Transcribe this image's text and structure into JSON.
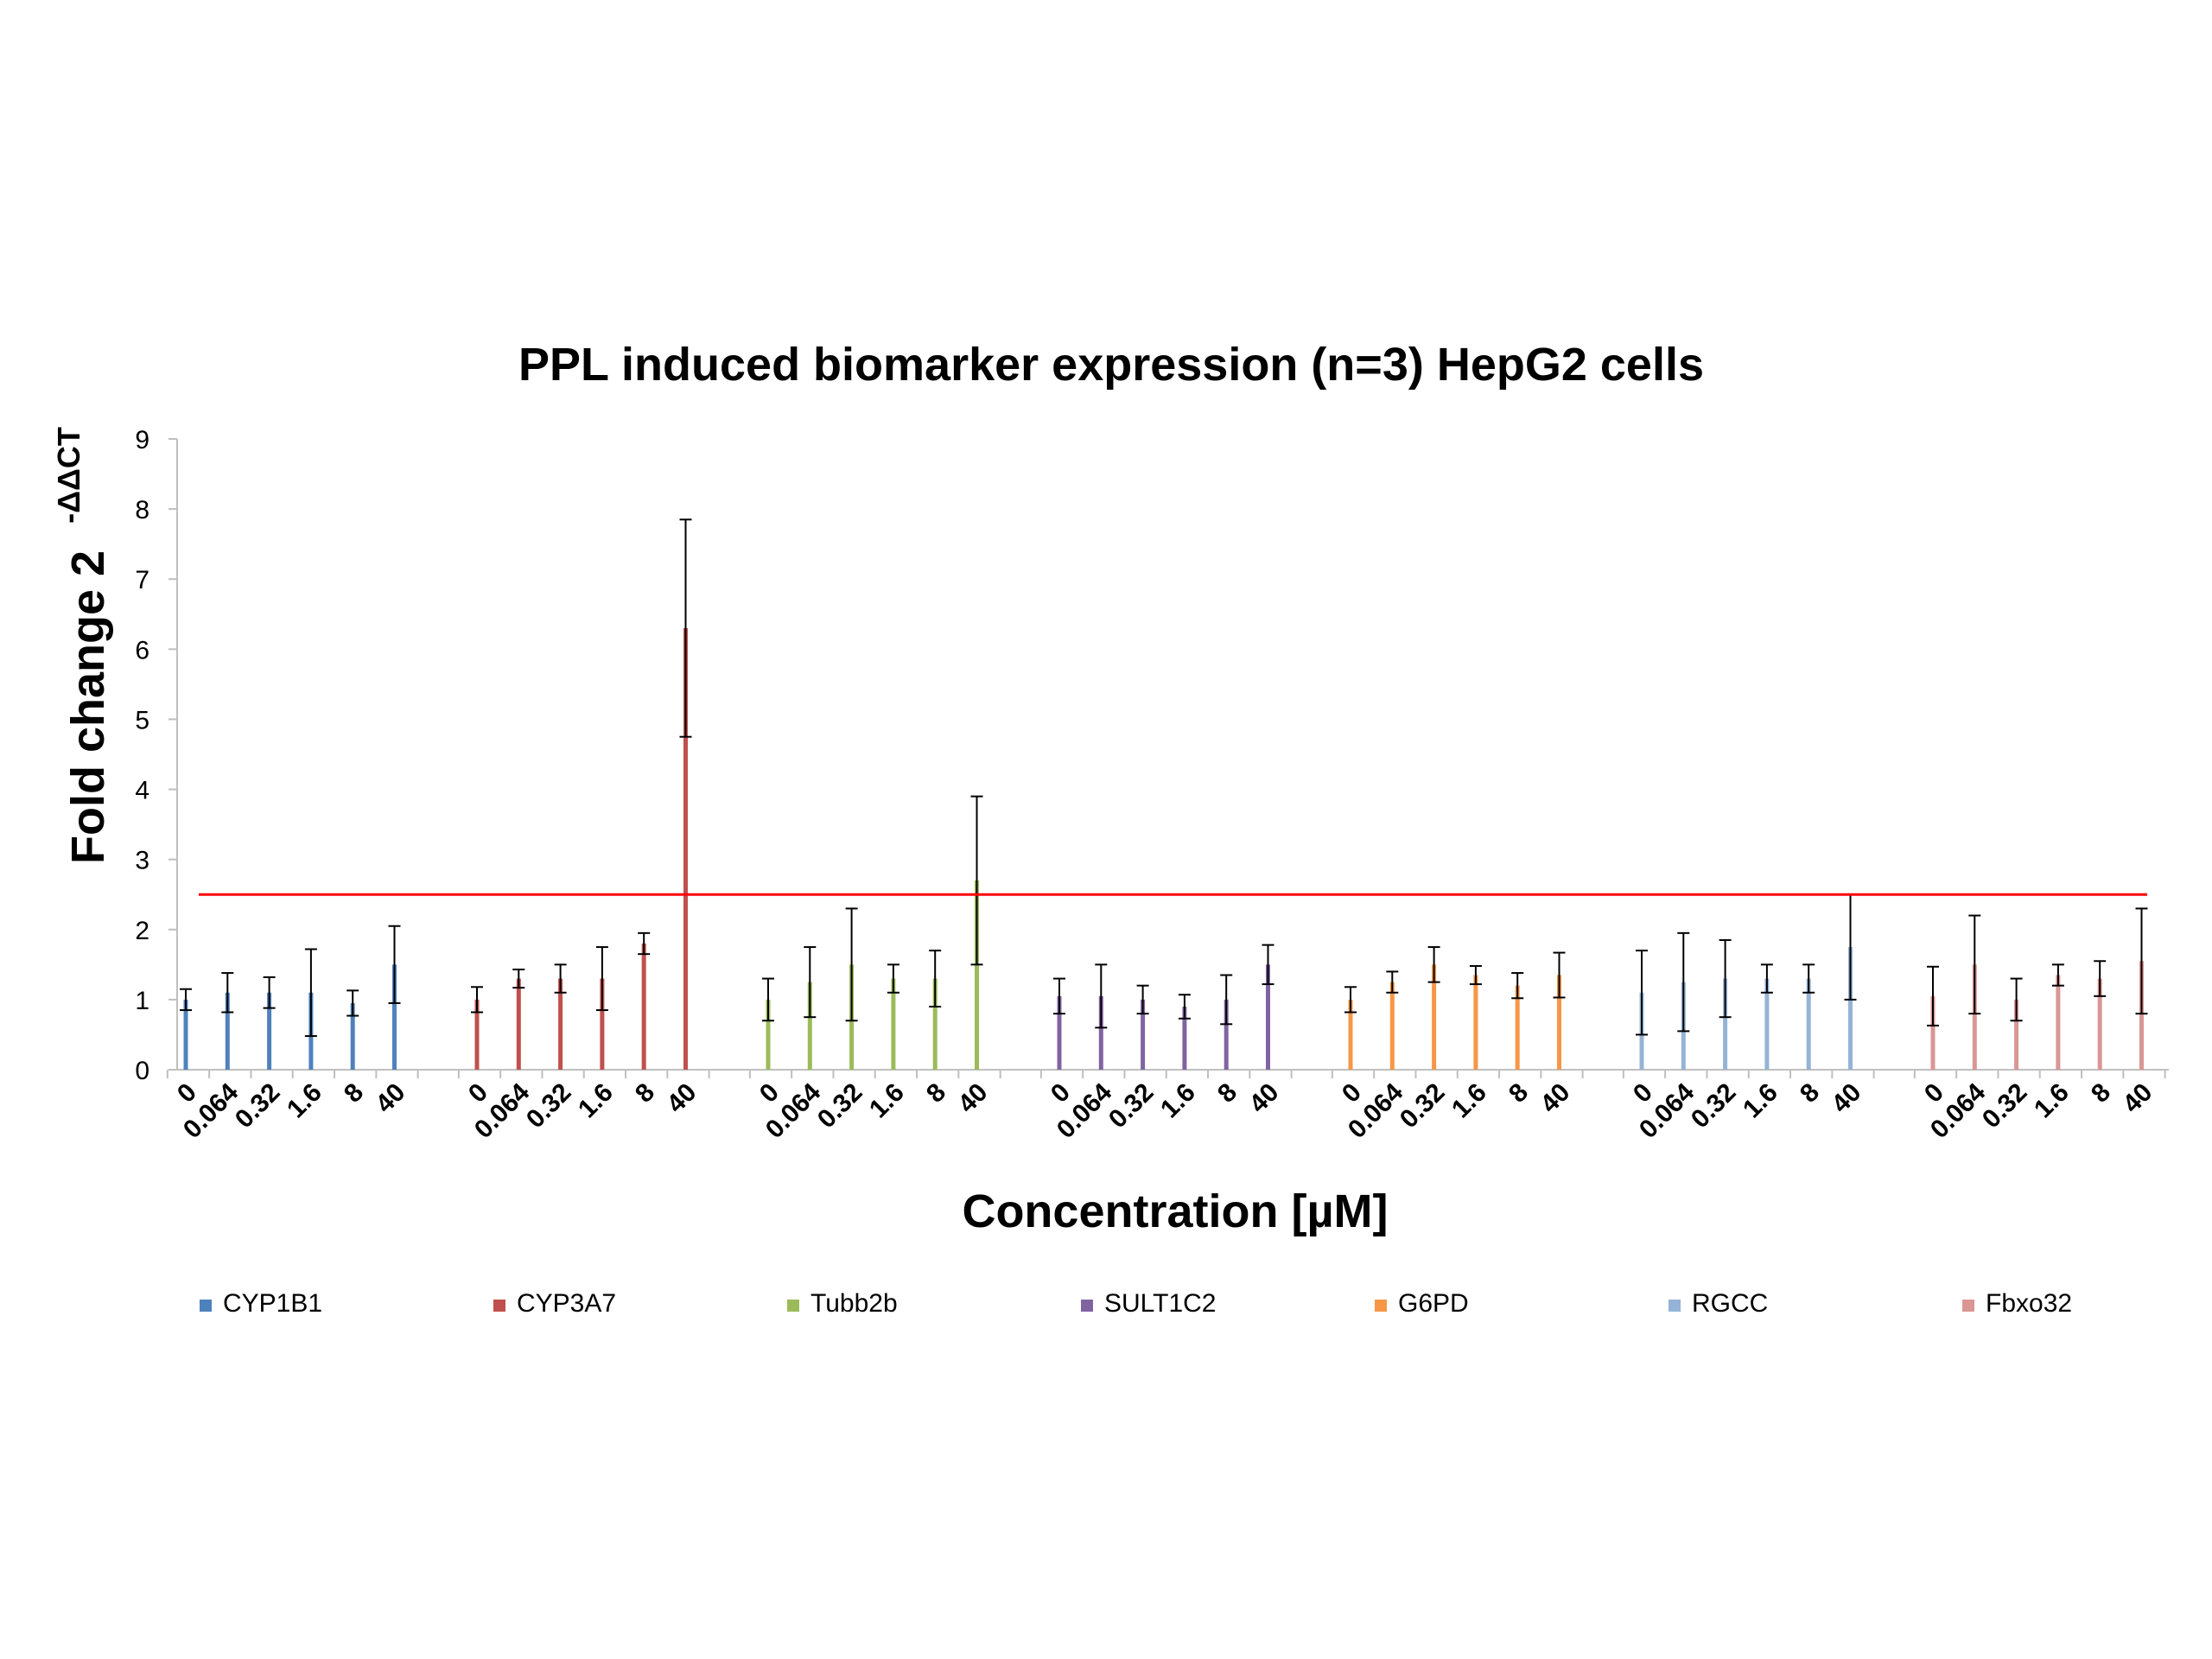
{
  "chart_data": {
    "type": "bar",
    "title": "PPL induced biomarker expression (n=3) HepG2 cells",
    "xlabel": "Concentration [µM]",
    "ylabel": "Fold change 2",
    "ylabel_superscript": "-ΔΔCT",
    "ylim": [
      0,
      9
    ],
    "y_ticks": [
      "0",
      "1",
      "2",
      "3",
      "4",
      "5",
      "6",
      "7",
      "8",
      "9"
    ],
    "grid": false,
    "legend_position": "bottom",
    "threshold": {
      "value": 2.5,
      "color": "#ff0000"
    },
    "categories": [
      "0",
      "0.064",
      "0.32",
      "1.6",
      "8",
      "40"
    ],
    "series": [
      {
        "name": "CYP1B1",
        "color": "#4f81bd",
        "values": [
          1.0,
          1.1,
          1.1,
          1.1,
          0.95,
          1.5
        ],
        "errors": [
          0.15,
          0.28,
          0.22,
          0.62,
          0.18,
          0.55
        ]
      },
      {
        "name": "CYP3A7",
        "color": "#c0504d",
        "values": [
          1.0,
          1.3,
          1.3,
          1.3,
          1.8,
          6.3
        ],
        "errors": [
          0.18,
          0.13,
          0.2,
          0.45,
          0.15,
          1.55
        ]
      },
      {
        "name": "Tubb2b",
        "color": "#9bbb59",
        "values": [
          1.0,
          1.25,
          1.5,
          1.3,
          1.3,
          2.7
        ],
        "errors": [
          0.3,
          0.5,
          0.8,
          0.2,
          0.4,
          1.2
        ]
      },
      {
        "name": "SULT1C2",
        "color": "#8064a2",
        "values": [
          1.05,
          1.05,
          1.0,
          0.9,
          1.0,
          1.5
        ],
        "errors": [
          0.25,
          0.45,
          0.2,
          0.17,
          0.35,
          0.28
        ]
      },
      {
        "name": "G6PD",
        "color": "#f79646",
        "values": [
          1.0,
          1.25,
          1.5,
          1.35,
          1.2,
          1.35
        ],
        "errors": [
          0.18,
          0.15,
          0.25,
          0.13,
          0.18,
          0.32
        ]
      },
      {
        "name": "RGCC",
        "color": "#95b3d7",
        "values": [
          1.1,
          1.25,
          1.3,
          1.3,
          1.3,
          1.75
        ],
        "errors": [
          0.6,
          0.7,
          0.55,
          0.2,
          0.2,
          0.75
        ]
      },
      {
        "name": "Fbxo32",
        "color": "#d99694",
        "values": [
          1.05,
          1.5,
          1.0,
          1.35,
          1.3,
          1.55
        ],
        "errors": [
          0.42,
          0.7,
          0.3,
          0.15,
          0.25,
          0.75
        ]
      }
    ]
  }
}
